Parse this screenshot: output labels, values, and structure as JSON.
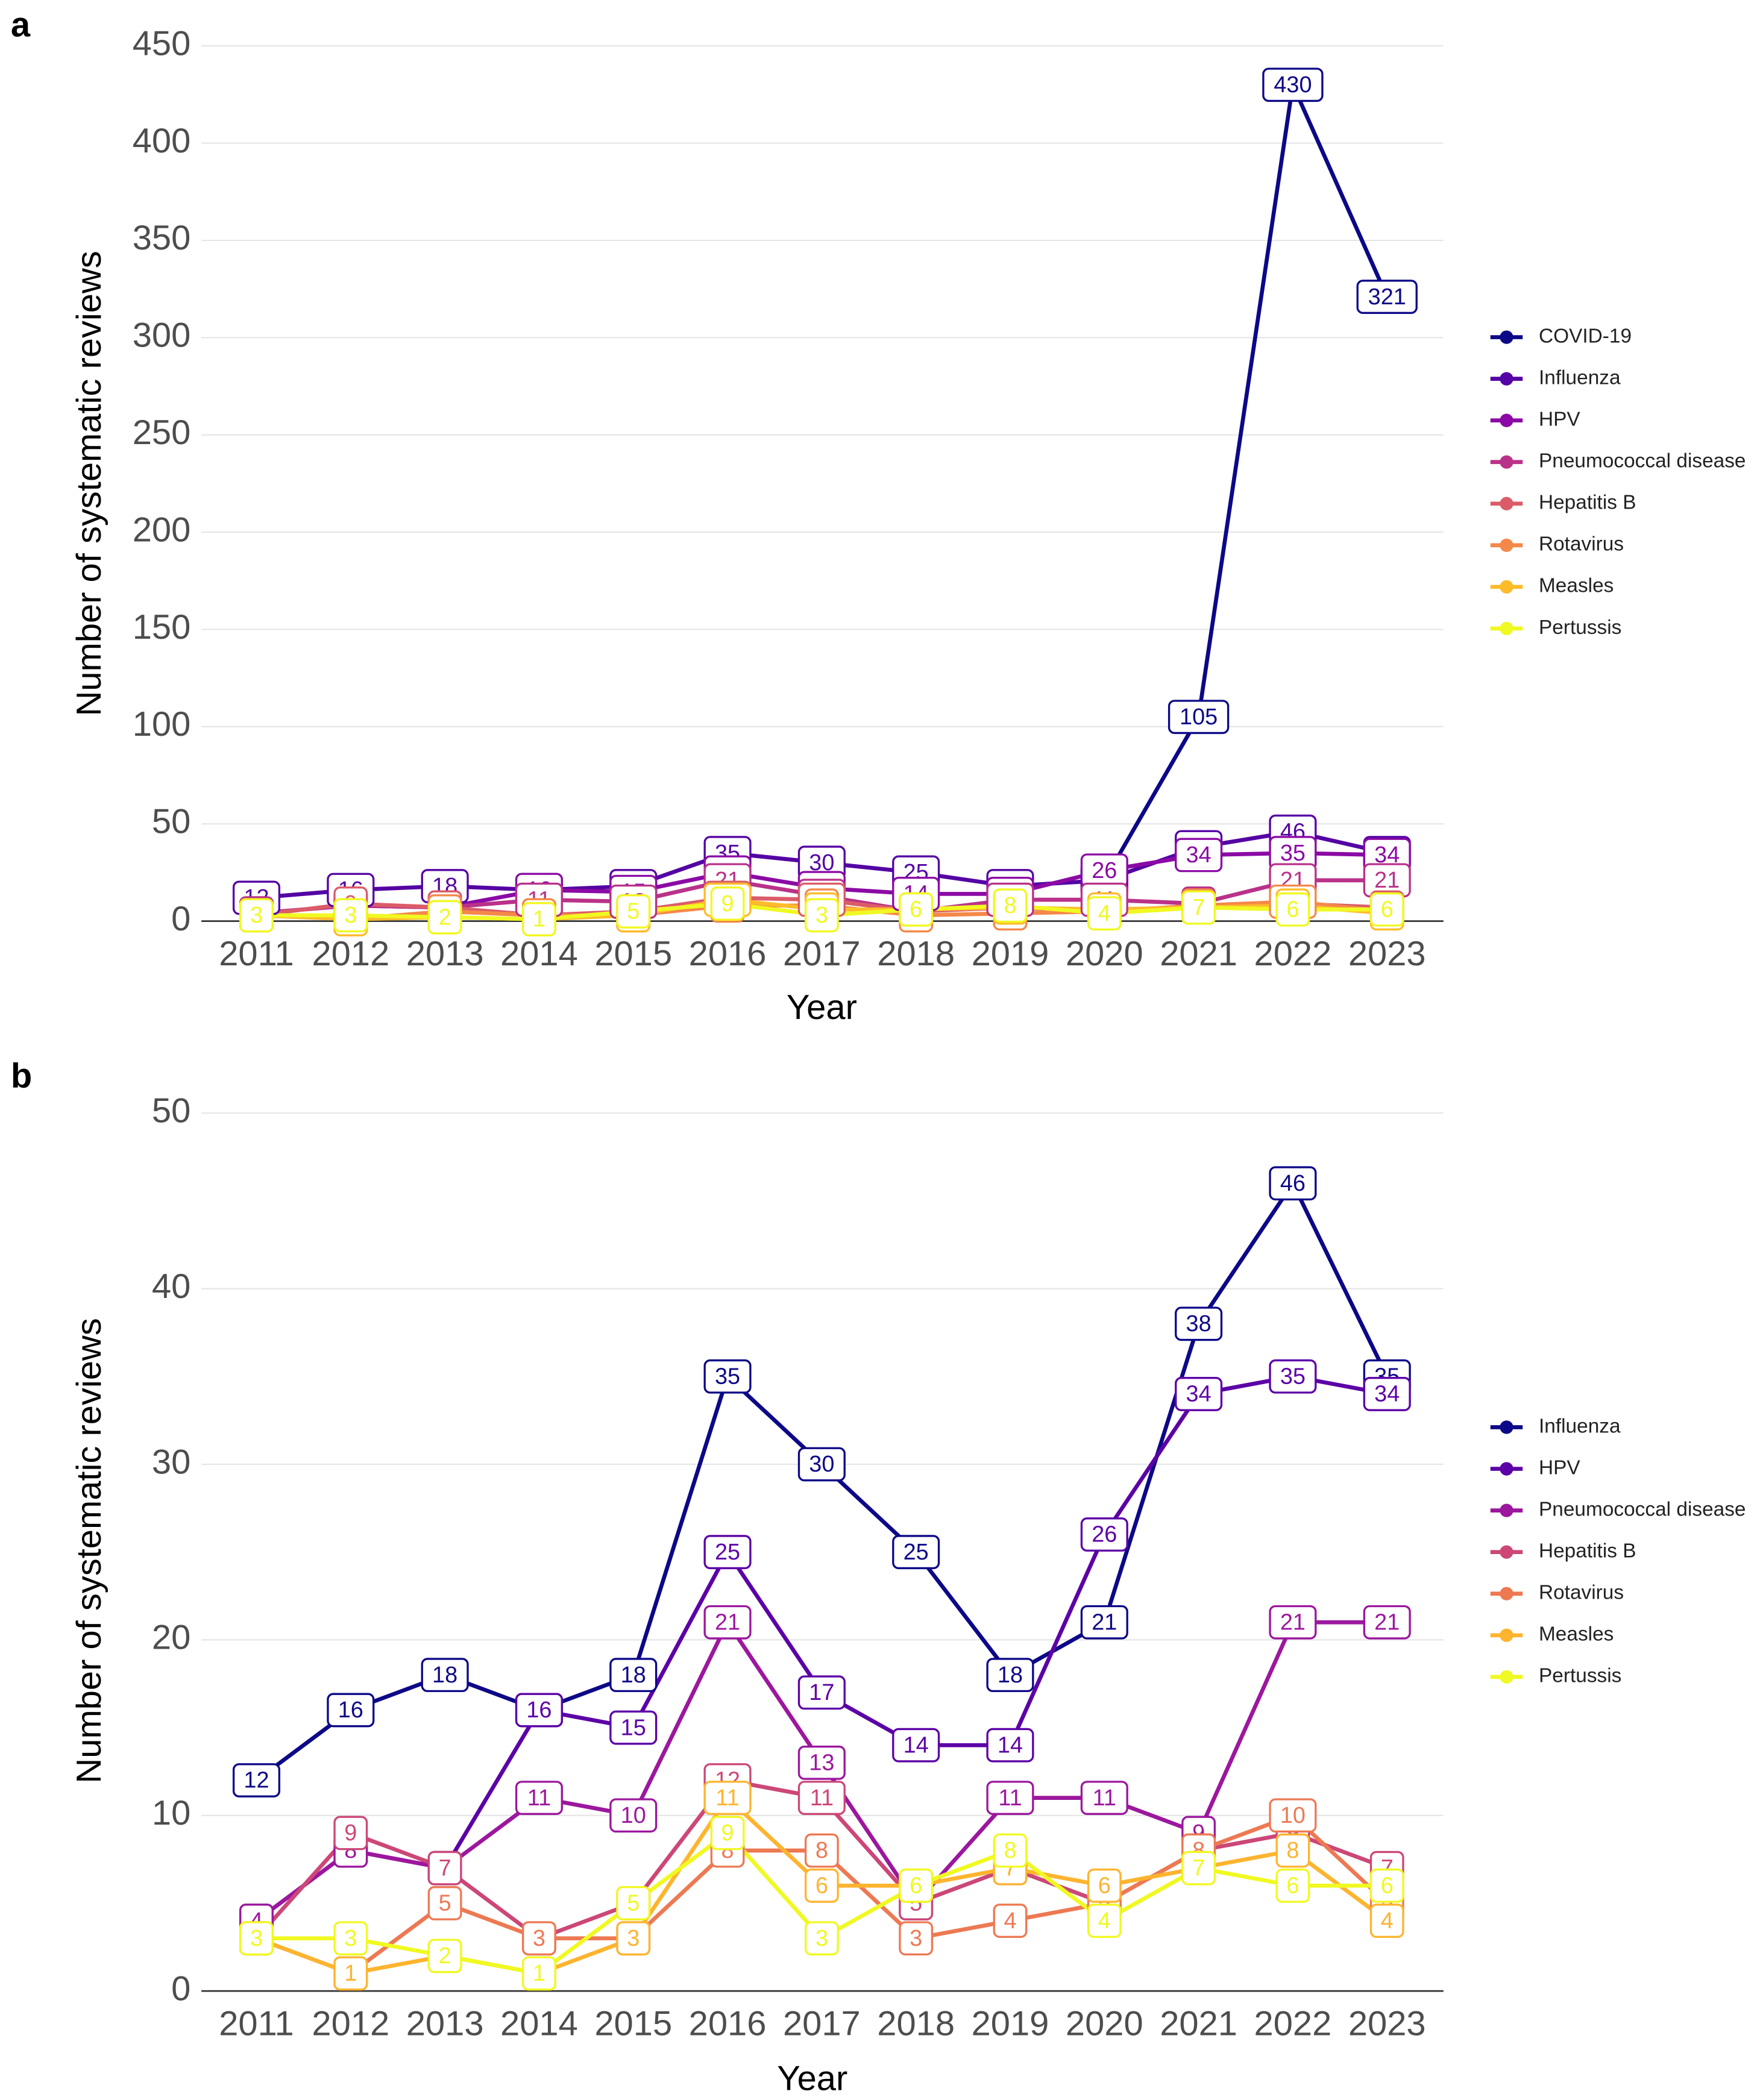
{
  "chart_data": [
    {
      "type": "line",
      "panel_label": "a",
      "x_label": "Year",
      "y_label": "Number of systematic reviews",
      "categories": [
        "2011",
        "2012",
        "2013",
        "2014",
        "2015",
        "2016",
        "2017",
        "2018",
        "2019",
        "2020",
        "2021",
        "2022",
        "2023"
      ],
      "ylim": [
        0,
        450
      ],
      "yticks": [
        0,
        50,
        100,
        150,
        200,
        250,
        300,
        350,
        400,
        450
      ],
      "grid": true,
      "series": [
        {
          "name": "COVID-19",
          "color": "#0d0887",
          "values": [
            null,
            null,
            null,
            null,
            null,
            null,
            null,
            null,
            null,
            21,
            105,
            430,
            321
          ]
        },
        {
          "name": "Influenza",
          "color": "#5402a3",
          "values": [
            12,
            16,
            18,
            16,
            18,
            35,
            30,
            25,
            18,
            21,
            38,
            46,
            35
          ]
        },
        {
          "name": "HPV",
          "color": "#8b0aa5",
          "values": [
            4,
            8,
            7,
            16,
            15,
            25,
            17,
            14,
            14,
            26,
            34,
            35,
            34
          ]
        },
        {
          "name": "Pneumococcal disease",
          "color": "#b93289",
          "values": [
            4,
            8,
            7,
            11,
            10,
            21,
            13,
            5,
            11,
            11,
            9,
            21,
            21
          ]
        },
        {
          "name": "Hepatitis B",
          "color": "#db5c68",
          "values": [
            3,
            9,
            7,
            3,
            5,
            12,
            11,
            5,
            7,
            5,
            8,
            9,
            7
          ]
        },
        {
          "name": "Rotavirus",
          "color": "#f48849",
          "values": [
            3,
            1,
            5,
            3,
            3,
            8,
            8,
            3,
            4,
            5,
            8,
            10,
            5
          ]
        },
        {
          "name": "Measles",
          "color": "#febc2a",
          "values": [
            3,
            1,
            2,
            1,
            3,
            11,
            6,
            6,
            7,
            6,
            7,
            8,
            4
          ]
        },
        {
          "name": "Pertussis",
          "color": "#f0f921",
          "values": [
            3,
            3,
            2,
            1,
            5,
            9,
            3,
            6,
            8,
            4,
            7,
            6,
            6
          ]
        }
      ]
    },
    {
      "type": "line",
      "panel_label": "b",
      "x_label": "Year",
      "y_label": "Number of systematic reviews",
      "categories": [
        "2011",
        "2012",
        "2013",
        "2014",
        "2015",
        "2016",
        "2017",
        "2018",
        "2019",
        "2020",
        "2021",
        "2022",
        "2023"
      ],
      "ylim": [
        0,
        50
      ],
      "yticks": [
        0,
        10,
        20,
        30,
        40,
        50
      ],
      "grid": true,
      "series": [
        {
          "name": "Influenza",
          "color": "#0d0887",
          "values": [
            12,
            16,
            18,
            16,
            18,
            35,
            30,
            25,
            18,
            21,
            38,
            46,
            35
          ]
        },
        {
          "name": "HPV",
          "color": "#5c01a6",
          "values": [
            4,
            8,
            7,
            16,
            15,
            25,
            17,
            14,
            14,
            26,
            34,
            35,
            34
          ]
        },
        {
          "name": "Pneumococcal disease",
          "color": "#9c179e",
          "values": [
            4,
            8,
            7,
            11,
            10,
            21,
            13,
            5,
            11,
            11,
            9,
            21,
            21
          ]
        },
        {
          "name": "Hepatitis B",
          "color": "#cc4778",
          "values": [
            3,
            9,
            7,
            3,
            5,
            12,
            11,
            5,
            7,
            5,
            8,
            9,
            7
          ]
        },
        {
          "name": "Rotavirus",
          "color": "#ed7953",
          "values": [
            3,
            1,
            5,
            3,
            3,
            8,
            8,
            3,
            4,
            5,
            8,
            10,
            5
          ]
        },
        {
          "name": "Measles",
          "color": "#fdb42f",
          "values": [
            3,
            1,
            2,
            1,
            3,
            11,
            6,
            6,
            7,
            6,
            7,
            8,
            4
          ]
        },
        {
          "name": "Pertussis",
          "color": "#f0f921",
          "values": [
            3,
            3,
            2,
            1,
            5,
            9,
            3,
            6,
            8,
            4,
            7,
            6,
            6
          ]
        }
      ]
    }
  ]
}
